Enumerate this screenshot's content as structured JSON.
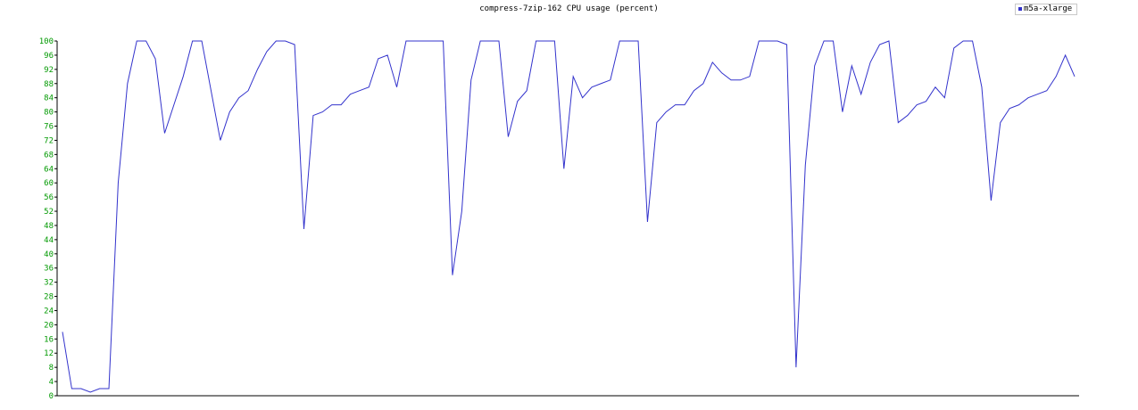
{
  "chart_data": {
    "type": "line",
    "title": "compress-7zip-162 CPU usage (percent)",
    "xlabel": "",
    "ylabel": "",
    "ylim": [
      0,
      100
    ],
    "yticks": [
      0,
      4,
      8,
      12,
      16,
      20,
      24,
      28,
      32,
      36,
      40,
      44,
      48,
      52,
      56,
      60,
      64,
      68,
      72,
      76,
      80,
      84,
      88,
      92,
      96,
      100
    ],
    "grid": false,
    "legend_position": "top-right",
    "tick_label_color": "#009900",
    "axis_color": "#000000",
    "series": [
      {
        "name": "m5a-xlarge",
        "color": "#3333cc",
        "values": [
          18,
          2,
          2,
          1,
          2,
          2,
          60,
          88,
          100,
          100,
          95,
          74,
          82,
          90,
          100,
          100,
          86,
          72,
          80,
          84,
          86,
          92,
          97,
          100,
          100,
          99,
          47,
          79,
          80,
          82,
          82,
          85,
          86,
          87,
          95,
          96,
          87,
          100,
          100,
          100,
          100,
          100,
          34,
          52,
          89,
          100,
          100,
          100,
          73,
          83,
          86,
          100,
          100,
          100,
          64,
          90,
          84,
          87,
          88,
          89,
          100,
          100,
          100,
          49,
          77,
          80,
          82,
          82,
          86,
          88,
          94,
          91,
          89,
          89,
          90,
          100,
          100,
          100,
          99,
          8,
          65,
          93,
          100,
          100,
          80,
          93,
          85,
          94,
          99,
          100,
          77,
          79,
          82,
          83,
          87,
          84,
          98,
          100,
          100,
          87,
          55,
          77,
          81,
          82,
          84,
          85,
          86,
          90,
          96,
          90
        ]
      }
    ]
  }
}
